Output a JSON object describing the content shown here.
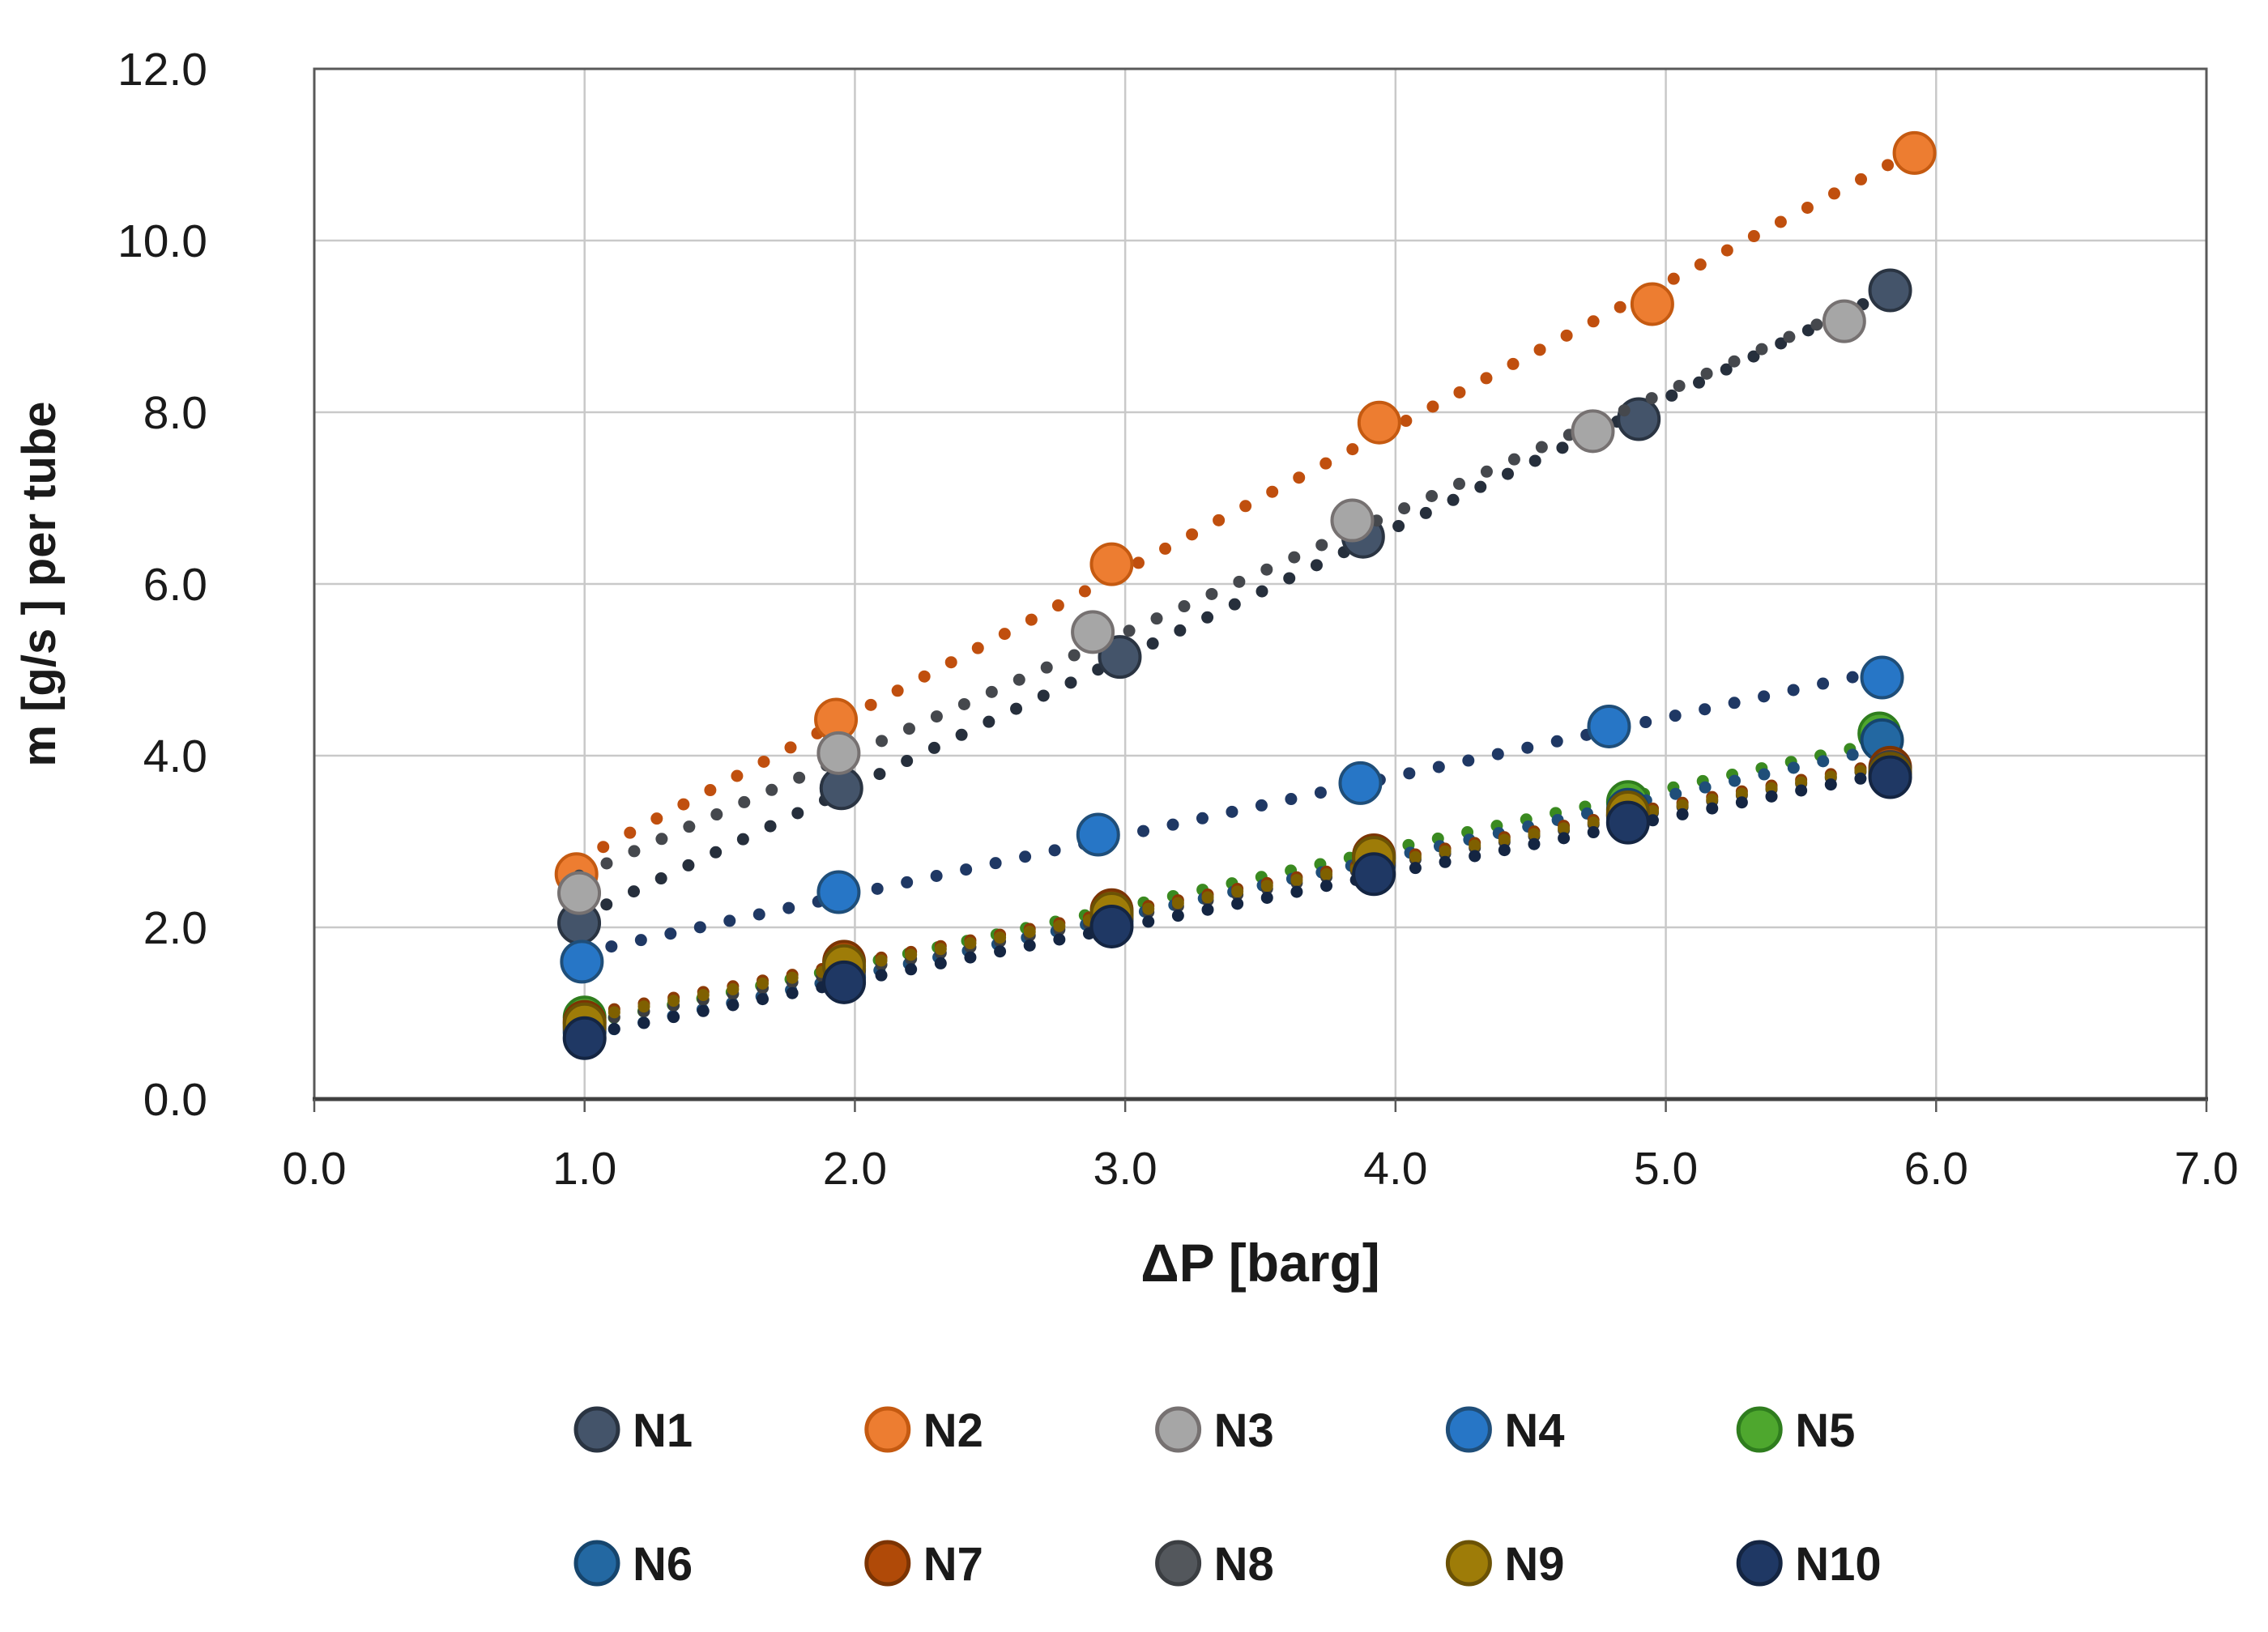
{
  "chart_data": {
    "type": "scatter",
    "title": "",
    "xlabel": "ΔP [barg]",
    "ylabel": "m [g/s ] per tube",
    "xlim": [
      0.0,
      7.0
    ],
    "ylim": [
      0.0,
      12.0
    ],
    "x_ticks": [
      "0.0",
      "1.0",
      "2.0",
      "3.0",
      "4.0",
      "5.0",
      "6.0",
      "7.0"
    ],
    "y_ticks": [
      "0.0",
      "2.0",
      "4.0",
      "6.0",
      "8.0",
      "10.0",
      "12.0"
    ],
    "grid": true,
    "legend_position": "bottom",
    "trendlines": "linear-dotted",
    "series": [
      {
        "name": "N1",
        "color": "#44546A",
        "stroke": "#2A3442",
        "trend": "#262F3C",
        "points": [
          [
            0.98,
            2.05
          ],
          [
            1.95,
            3.62
          ],
          [
            2.98,
            5.15
          ],
          [
            3.88,
            6.55
          ],
          [
            4.9,
            7.92
          ],
          [
            5.83,
            9.42
          ]
        ]
      },
      {
        "name": "N2",
        "color": "#ED7D31",
        "stroke": "#C55A11",
        "trend": "#C04F0E",
        "points": [
          [
            0.97,
            2.62
          ],
          [
            1.93,
            4.42
          ],
          [
            2.95,
            6.23
          ],
          [
            3.94,
            7.88
          ],
          [
            4.95,
            9.26
          ],
          [
            5.92,
            11.02
          ]
        ]
      },
      {
        "name": "N3",
        "color": "#A6A6A6",
        "stroke": "#767171",
        "trend": "#45484D",
        "points": [
          [
            0.98,
            2.4
          ],
          [
            1.94,
            4.03
          ],
          [
            2.88,
            5.44
          ],
          [
            3.84,
            6.74
          ],
          [
            4.73,
            7.78
          ],
          [
            5.66,
            9.06
          ]
        ]
      },
      {
        "name": "N4",
        "color": "#2776C6",
        "stroke": "#1F4E79",
        "trend": "#1F3864",
        "points": [
          [
            0.99,
            1.6
          ],
          [
            1.94,
            2.41
          ],
          [
            2.9,
            3.08
          ],
          [
            3.87,
            3.68
          ],
          [
            4.79,
            4.34
          ],
          [
            5.8,
            4.91
          ]
        ]
      },
      {
        "name": "N5",
        "color": "#4EA72E",
        "stroke": "#2F7D1E",
        "trend": "#3A8A20",
        "points": [
          [
            1.0,
            0.95
          ],
          [
            1.96,
            1.52
          ],
          [
            2.95,
            2.16
          ],
          [
            3.92,
            2.8
          ],
          [
            4.86,
            3.46
          ],
          [
            5.79,
            4.26
          ]
        ]
      },
      {
        "name": "N6",
        "color": "#2368A2",
        "stroke": "#16456D",
        "trend": "#1F4E79",
        "points": [
          [
            1.0,
            0.78
          ],
          [
            1.96,
            1.42
          ],
          [
            2.95,
            2.07
          ],
          [
            3.92,
            2.72
          ],
          [
            4.86,
            3.37
          ],
          [
            5.8,
            4.18
          ]
        ]
      },
      {
        "name": "N7",
        "color": "#B04A08",
        "stroke": "#7C3403",
        "trend": "#8C3A05",
        "points": [
          [
            1.0,
            0.9
          ],
          [
            1.96,
            1.6
          ],
          [
            2.95,
            2.2
          ],
          [
            3.92,
            2.84
          ],
          [
            4.86,
            3.31
          ],
          [
            5.83,
            3.86
          ]
        ]
      },
      {
        "name": "N8",
        "color": "#53575C",
        "stroke": "#3B3E42",
        "trend": "#3B3E42",
        "points": [
          [
            1.0,
            0.83
          ],
          [
            1.96,
            1.5
          ],
          [
            2.95,
            2.11
          ],
          [
            3.92,
            2.76
          ],
          [
            4.86,
            3.3
          ],
          [
            5.83,
            3.81
          ]
        ]
      },
      {
        "name": "N9",
        "color": "#9E7C08",
        "stroke": "#6B5205",
        "trend": "#7F6000",
        "points": [
          [
            1.0,
            0.87
          ],
          [
            1.96,
            1.55
          ],
          [
            2.95,
            2.16
          ],
          [
            3.92,
            2.81
          ],
          [
            4.86,
            3.34
          ],
          [
            5.83,
            3.79
          ]
        ]
      },
      {
        "name": "N10",
        "color": "#1F3864",
        "stroke": "#142542",
        "trend": "#142542",
        "points": [
          [
            1.0,
            0.71
          ],
          [
            1.96,
            1.36
          ],
          [
            2.95,
            2.01
          ],
          [
            3.92,
            2.62
          ],
          [
            4.86,
            3.22
          ],
          [
            5.83,
            3.75
          ]
        ]
      }
    ]
  },
  "style_colors": {
    "gridline": "#C9C9C9",
    "frame": "#595959",
    "axis_line": "#404040",
    "text": "#1a1a1a"
  }
}
